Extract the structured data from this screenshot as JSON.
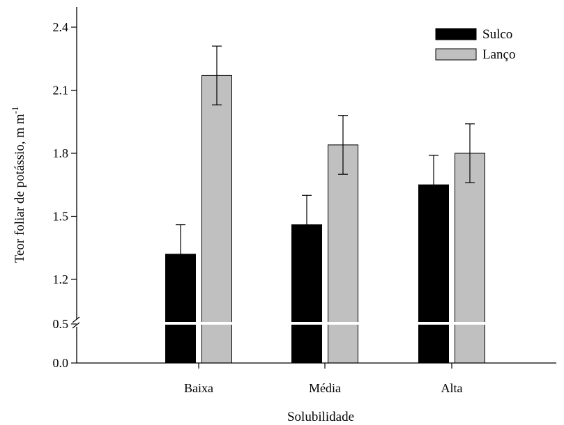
{
  "chart_data": {
    "type": "bar",
    "xlabel": "Solubilidade",
    "ylabel": "Teor foliar de potássio, m m",
    "ylabel_superscript": "-1",
    "categories": [
      "Baixa",
      "Média",
      "Alta"
    ],
    "series": [
      {
        "name": "Sulco",
        "color": "#000000",
        "values": [
          1.32,
          1.46,
          1.65
        ],
        "errors": [
          0.14,
          0.14,
          0.14
        ]
      },
      {
        "name": "Lanço",
        "color": "#c0c0c0",
        "values": [
          2.17,
          1.84,
          1.8
        ],
        "errors": [
          0.14,
          0.14,
          0.14
        ]
      }
    ],
    "yticks": [
      "0.0",
      "0.5",
      "1.2",
      "1.5",
      "1.8",
      "2.1",
      "2.4"
    ],
    "ylim_lower": [
      0.0,
      0.5
    ],
    "ylim_upper": [
      1.0,
      2.5
    ],
    "axis_break": true,
    "legend_position": "top-right",
    "grid": false
  }
}
